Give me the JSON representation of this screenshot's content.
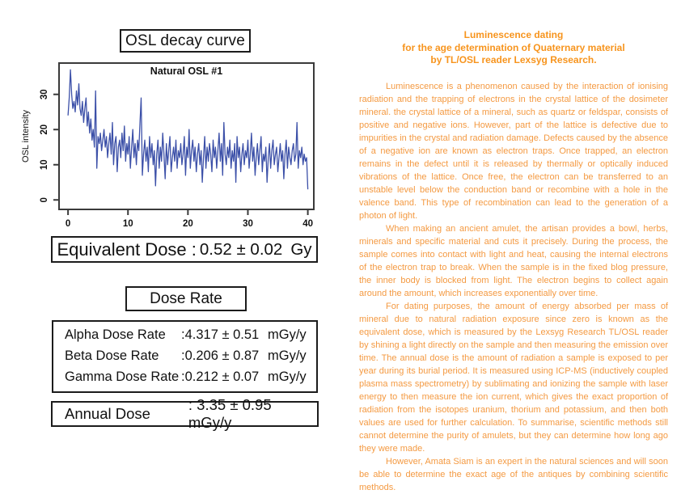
{
  "left_panel": {
    "decay_title": "OSL decay curve",
    "equivalent_dose": {
      "label": "Equivalent Dose :",
      "value": "0.52 ± 0.02",
      "unit": "Gy"
    },
    "dose_rate_title": "Dose Rate",
    "dose_rates": [
      {
        "label": "Alpha Dose Rate",
        "value": ":4.317 ± 0.51",
        "unit": "mGy/y"
      },
      {
        "label": "Beta Dose Rate",
        "value": ":0.206 ± 0.87",
        "unit": "mGy/y"
      },
      {
        "label": "Gamma Dose Rate",
        "value": ":0.212 ± 0.07",
        "unit": "mGy/y"
      }
    ],
    "annual_dose": {
      "label": "Annual Dose",
      "value": ": 3.35 ± 0.95 mGy/y"
    }
  },
  "right_panel": {
    "title_lines": [
      "Luminescence dating",
      "for the age determination of Quaternary material",
      "by TL/OSL reader Lexsyg Research."
    ],
    "title_color": "#F7941D",
    "body_color": "#F49A42",
    "paragraphs": [
      "Luminescence is a phenomenon caused by the interaction of ionising radiation and the trapping of electrons in the crystal lattice of the dosimeter mineral. the crystal lattice of a mineral, such as quartz or feldspar, consists of positive and negative ions. However, part of the lattice is defective due to impurities in the crystal and radiation damage. Defects caused by the absence of a negative ion are known as electron traps. Once trapped, an electron remains in the defect until it is released by thermally or optically induced vibrations of the lattice. Once free, the electron can be transferred to an unstable level below the conduction band or recombine with a hole in the valence band. This type of recombination can lead to the generation of a photon of light.",
      "When making an ancient amulet, the artisan provides a bowl, herbs, minerals and specific material and cuts it precisely. During the process, the sample comes into contact with light and heat, causing the internal electrons of the electron trap to break. When the sample is in the fixed blog pressure, the inner body is blocked from light. The electron begins to collect again around the amount, which increases exponentially over time.",
      "For dating purposes, the amount of energy absorbed per mass of mineral due to natural radiation exposure since zero is known as the equivalent dose, which is measured by the Lexsyg Research TL/OSL reader by shining a light directly on the sample and then measuring the emission over time. The annual dose is the amount of radiation a sample is exposed to per year during its burial period. It is measured using ICP-MS (inductively coupled plasma mass spectrometry) by sublimating and ionizing the sample with laser energy to then measure the ion current, which gives the exact proportion of radiation from the isotopes uranium, thorium and potassium, and then both values are used for further calculation. To summarise, scientific methods still cannot determine the purity of amulets, but they can determine how long ago they were made.",
      "However, Amata Siam is an expert in the natural sciences and will soon be able to determine the exact age of the antiques by combining scientific methods."
    ]
  },
  "chart_data": {
    "type": "line",
    "title": "Natural OSL #1",
    "xlabel": "",
    "ylabel": "OSL intensity",
    "xlim": [
      0,
      40
    ],
    "ylim": [
      0,
      38
    ],
    "xlim_draw": [
      -1.5,
      41
    ],
    "ylim_draw": [
      -2.7,
      38.9
    ],
    "x_ticks": [
      0,
      10,
      20,
      30,
      40
    ],
    "y_ticks": [
      0,
      10,
      20,
      30
    ],
    "grid": false,
    "legend": false,
    "line_color": "#3C50A8",
    "frame_color": "#3a3a3a",
    "x_start": 0,
    "x_step": 0.2,
    "values": [
      24,
      29,
      37,
      30,
      26,
      28,
      25,
      31,
      27,
      33,
      26,
      24,
      28,
      22,
      26,
      29,
      21,
      25,
      19,
      23,
      17,
      20,
      15,
      31,
      9,
      18,
      16,
      19,
      14,
      17,
      20,
      15,
      18,
      12,
      16,
      19,
      13,
      22,
      10,
      16,
      18,
      8,
      15,
      17,
      12,
      19,
      14,
      21,
      11,
      16,
      13,
      18,
      9,
      15,
      20,
      12,
      16,
      10,
      17,
      14,
      22,
      29,
      7,
      13,
      17,
      11,
      15,
      8,
      18,
      12,
      16,
      10,
      14,
      4,
      13,
      17,
      9,
      15,
      11,
      19,
      13,
      6,
      16,
      10,
      14,
      18,
      8,
      12,
      15,
      11,
      17,
      9,
      14,
      12,
      16,
      10,
      13,
      18,
      7,
      15,
      12,
      20,
      9,
      14,
      17,
      11,
      15,
      8,
      13,
      16,
      10,
      14,
      5,
      12,
      18,
      9,
      15,
      11,
      16,
      13,
      8,
      17,
      12,
      15,
      9,
      14,
      19,
      11,
      16,
      7,
      22,
      13,
      10,
      15,
      12,
      17,
      9,
      14,
      11,
      16,
      5,
      18,
      12,
      15,
      8,
      13,
      16,
      10,
      14,
      12,
      17,
      9,
      13,
      19,
      11,
      15,
      7,
      12,
      16,
      10,
      14,
      18,
      8,
      13,
      11,
      15,
      5,
      12,
      16,
      9,
      14,
      17,
      10,
      13,
      15,
      8,
      12,
      16,
      11,
      14,
      6,
      13,
      17,
      9,
      15,
      12,
      10,
      14,
      16,
      11,
      13,
      22,
      9,
      14,
      12,
      15,
      10,
      13,
      11,
      12,
      3
    ]
  }
}
